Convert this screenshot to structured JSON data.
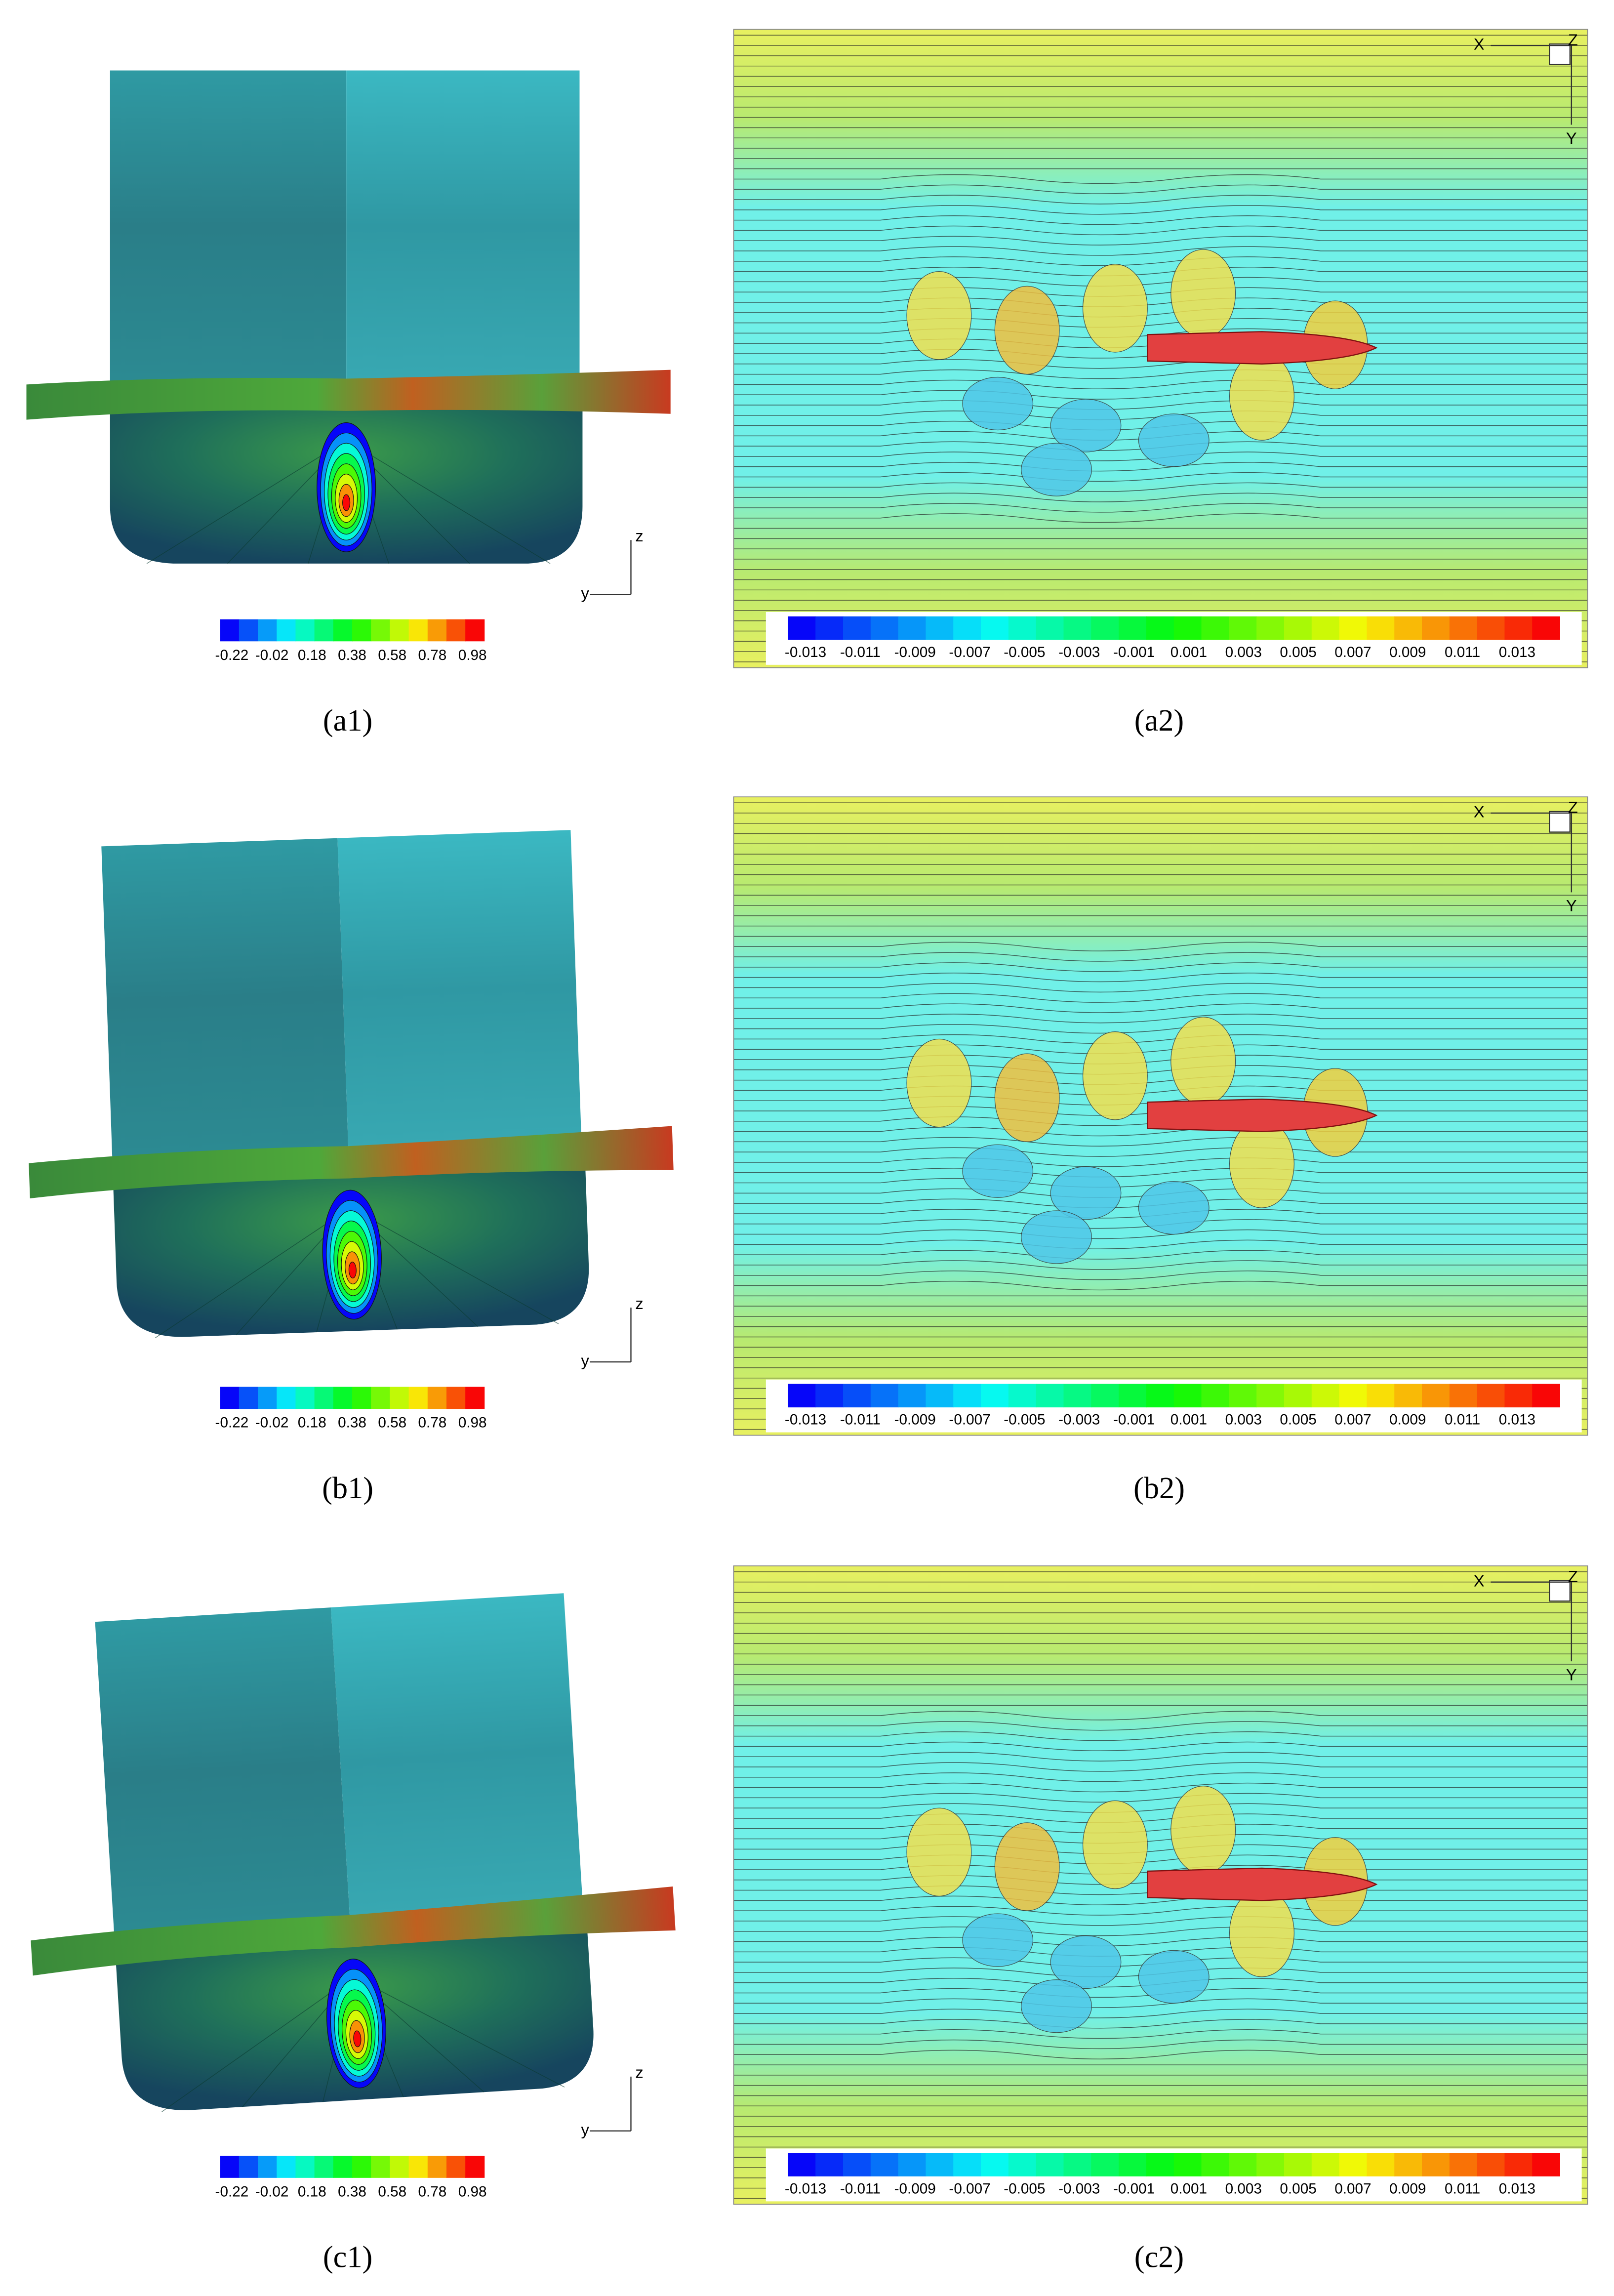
{
  "panels": [
    {
      "caption": "(a1)",
      "kind": "hull",
      "colorbar": [
        -0.22,
        -0.02,
        0.18,
        0.38,
        0.58,
        0.78,
        0.98
      ],
      "axes": [
        "z",
        "y"
      ]
    },
    {
      "caption": "(a2)",
      "kind": "wave",
      "colorbar": [
        -0.013,
        -0.011,
        -0.009,
        -0.007,
        -0.005,
        -0.003,
        -0.001,
        0.001,
        0.003,
        0.005,
        0.007,
        0.009,
        0.011,
        0.013
      ],
      "axes": [
        "X",
        "Z",
        "Y"
      ]
    },
    {
      "caption": "(b1)",
      "kind": "hull",
      "colorbar": [
        -0.22,
        -0.02,
        0.18,
        0.38,
        0.58,
        0.78,
        0.98
      ],
      "axes": [
        "z",
        "y"
      ]
    },
    {
      "caption": "(b2)",
      "kind": "wave",
      "colorbar": [
        -0.013,
        -0.011,
        -0.009,
        -0.007,
        -0.005,
        -0.003,
        -0.001,
        0.001,
        0.003,
        0.005,
        0.007,
        0.009,
        0.011,
        0.013
      ],
      "axes": [
        "X",
        "Z",
        "Y"
      ]
    },
    {
      "caption": "(c1)",
      "kind": "hull",
      "colorbar": [
        -0.22,
        -0.02,
        0.18,
        0.38,
        0.58,
        0.78,
        0.98
      ],
      "axes": [
        "z",
        "y"
      ]
    },
    {
      "caption": "(c2)",
      "kind": "wave",
      "colorbar": [
        -0.013,
        -0.011,
        -0.009,
        -0.007,
        -0.005,
        -0.003,
        -0.001,
        0.001,
        0.003,
        0.005,
        0.007,
        0.009,
        0.011,
        0.013
      ],
      "axes": [
        "X",
        "Z",
        "Y"
      ]
    }
  ]
}
